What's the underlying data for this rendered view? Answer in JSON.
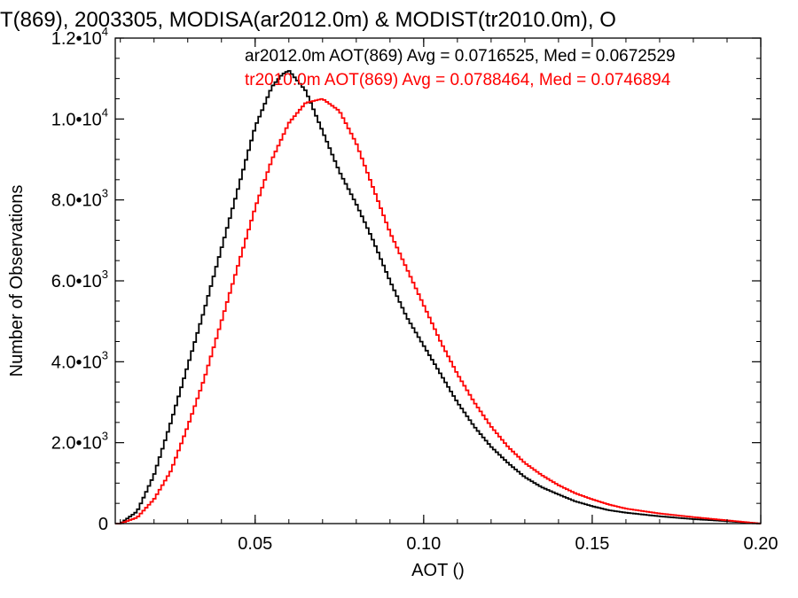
{
  "chart_data": {
    "type": "line",
    "step": true,
    "title": "T(869), 2003305, MODISA(ar2012.0m) & MODIST(tr2010.0m), O",
    "xlabel": "AOT ()",
    "ylabel": "Number of Observations",
    "xlim": [
      0.0085,
      0.2
    ],
    "ylim": [
      0,
      12000
    ],
    "x_ticks": [
      {
        "value": 0.05,
        "label": "0.05"
      },
      {
        "value": 0.1,
        "label": "0.10"
      },
      {
        "value": 0.15,
        "label": "0.15"
      },
      {
        "value": 0.2,
        "label": "0.20"
      }
    ],
    "y_ticks": [
      {
        "value": 0,
        "mant": "0",
        "exp": ""
      },
      {
        "value": 2000,
        "mant": "2.0•10",
        "exp": "3"
      },
      {
        "value": 4000,
        "mant": "4.0•10",
        "exp": "3"
      },
      {
        "value": 6000,
        "mant": "6.0•10",
        "exp": "3"
      },
      {
        "value": 8000,
        "mant": "8.0•10",
        "exp": "3"
      },
      {
        "value": 10000,
        "mant": "1.0•10",
        "exp": "4"
      },
      {
        "value": 12000,
        "mant": "1.2•10",
        "exp": "4"
      }
    ],
    "grid": false,
    "series": [
      {
        "name": "ar2012.0m",
        "color": "#000000",
        "annotation": "ar2012.0m AOT(869) Avg = 0.0716525, Med = 0.0672529",
        "x": [
          0.01,
          0.015,
          0.02,
          0.025,
          0.03,
          0.035,
          0.04,
          0.045,
          0.05,
          0.055,
          0.058,
          0.06,
          0.065,
          0.07,
          0.075,
          0.08,
          0.085,
          0.09,
          0.095,
          0.1,
          0.105,
          0.11,
          0.115,
          0.12,
          0.125,
          0.13,
          0.135,
          0.14,
          0.145,
          0.15,
          0.155,
          0.16,
          0.17,
          0.18,
          0.19,
          0.2
        ],
        "y": [
          0,
          300,
          1200,
          2500,
          3900,
          5300,
          6800,
          8300,
          9800,
          10800,
          11100,
          11200,
          10700,
          9700,
          8700,
          7900,
          7000,
          6000,
          5100,
          4400,
          3700,
          3000,
          2400,
          1900,
          1500,
          1150,
          900,
          720,
          550,
          430,
          330,
          270,
          180,
          110,
          60,
          0
        ]
      },
      {
        "name": "tr2010.0m",
        "color": "#ff0000",
        "annotation": "tr2010.0m AOT(869) Avg = 0.0788464, Med = 0.0746894",
        "x": [
          0.01,
          0.015,
          0.02,
          0.025,
          0.03,
          0.035,
          0.04,
          0.045,
          0.05,
          0.055,
          0.06,
          0.065,
          0.07,
          0.075,
          0.08,
          0.085,
          0.09,
          0.095,
          0.1,
          0.105,
          0.11,
          0.115,
          0.12,
          0.125,
          0.13,
          0.135,
          0.14,
          0.145,
          0.15,
          0.155,
          0.16,
          0.17,
          0.18,
          0.19,
          0.2
        ],
        "y": [
          0,
          150,
          600,
          1300,
          2400,
          3600,
          5000,
          6400,
          7800,
          9000,
          9900,
          10400,
          10500,
          10200,
          9400,
          8300,
          7200,
          6300,
          5400,
          4500,
          3700,
          3000,
          2400,
          1900,
          1500,
          1200,
          950,
          750,
          600,
          470,
          370,
          250,
          160,
          80,
          0
        ]
      }
    ]
  }
}
